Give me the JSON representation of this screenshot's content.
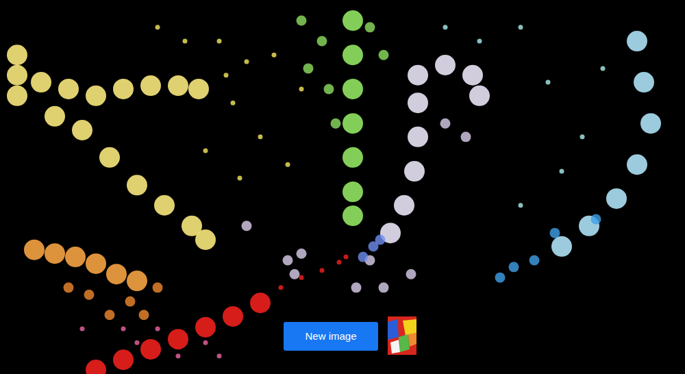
{
  "chart_data": {
    "type": "scatter",
    "tick_labels": false,
    "grid": false,
    "xlim": [
      0,
      100
    ],
    "ylim": [
      0,
      100
    ],
    "series": [
      {
        "color": "#e8dc5a",
        "marker": "dots",
        "x": [
          32,
          36,
          40,
          34,
          38,
          30,
          42,
          35,
          27,
          23,
          44,
          33
        ],
        "y": [
          89.0,
          83.5,
          85.3,
          72.5,
          63.4,
          59.7,
          56.0,
          52.4,
          89.0,
          92.7,
          76.2,
          79.9
        ]
      },
      {
        "color": "#a0e0e0",
        "marker": "dots",
        "x": [
          76,
          80,
          85,
          82,
          88,
          76,
          65,
          70
        ],
        "y": [
          92.7,
          78.0,
          63.4,
          54.2,
          81.7,
          45.1,
          92.7,
          89.0
        ]
      },
      {
        "color": "#e0609a",
        "marker": "dots",
        "x": [
          20,
          26,
          30,
          23,
          32,
          18,
          12
        ],
        "y": [
          8.4,
          4.8,
          8.4,
          12.1,
          4.8,
          12.1,
          12.1
        ]
      },
      {
        "color": "#f2e27a",
        "marker": "tube",
        "x": [
          2.5,
          2.5,
          2.5,
          6,
          10,
          14,
          18,
          22,
          26,
          29,
          8,
          12,
          16,
          20,
          24,
          28,
          30
        ],
        "y": [
          85.3,
          79.9,
          74.4,
          78.0,
          76.2,
          74.4,
          76.2,
          77.1,
          77.1,
          76.2,
          68.9,
          65.2,
          57.9,
          50.5,
          45.1,
          39.6,
          35.9
        ]
      },
      {
        "color": "#f0a040",
        "marker": "tube",
        "x": [
          5,
          8,
          11,
          14,
          17,
          20
        ],
        "y": [
          33.2,
          32.2,
          31.3,
          29.5,
          26.7,
          24.9
        ]
      },
      {
        "color": "#f08a30",
        "marker": "cloud",
        "x": [
          13,
          19,
          23,
          10,
          16,
          21
        ],
        "y": [
          21.2,
          19.4,
          23.1,
          23.1,
          15.8,
          15.8
        ]
      },
      {
        "color": "#8ee060",
        "marker": "cloud",
        "x": [
          44,
          47,
          45,
          48,
          54,
          56,
          49
        ],
        "y": [
          94.5,
          89.0,
          81.7,
          76.2,
          92.7,
          85.3,
          67.0
        ]
      },
      {
        "color": "#8ee060",
        "marker": "tube",
        "x": [
          51.5,
          51.5,
          51.5,
          51.5,
          51.5,
          51.5,
          51.5
        ],
        "y": [
          94.5,
          85.3,
          76.2,
          67.0,
          57.9,
          48.7,
          42.3
        ]
      },
      {
        "color": "#e4def0",
        "marker": "tube",
        "x": [
          61,
          65,
          69,
          70,
          61,
          61,
          60.5,
          59,
          57
        ],
        "y": [
          79.9,
          82.6,
          79.9,
          74.4,
          72.5,
          63.4,
          54.2,
          45.1,
          37.7
        ]
      },
      {
        "color": "#dcd0ec",
        "marker": "cloud",
        "x": [
          54,
          52,
          56,
          43,
          42,
          44,
          36,
          60,
          65,
          68
        ],
        "y": [
          30.4,
          23.1,
          23.1,
          26.7,
          30.4,
          32.2,
          39.6,
          26.7,
          67.0,
          63.4
        ]
      },
      {
        "color": "#a8dcf0",
        "marker": "tube",
        "x": [
          93,
          94,
          95,
          93,
          90,
          86,
          82
        ],
        "y": [
          89.0,
          78.0,
          67.0,
          56.0,
          46.9,
          39.6,
          34.1
        ]
      },
      {
        "color": "#40a0e8",
        "marker": "cloud",
        "x": [
          78,
          75,
          73,
          81,
          87
        ],
        "y": [
          30.4,
          28.6,
          25.8,
          37.7,
          41.4
        ]
      },
      {
        "color": "#6f8ff0",
        "marker": "cloud",
        "x": [
          54.5,
          53,
          55.5
        ],
        "y": [
          34.1,
          31.3,
          35.9
        ]
      },
      {
        "color": "#e8201c",
        "marker": "tube",
        "x": [
          14,
          18,
          22,
          26,
          30,
          34,
          38
        ],
        "y": [
          1.1,
          3.8,
          6.6,
          9.3,
          12.5,
          15.4,
          19.0
        ]
      },
      {
        "color": "#e8201c",
        "marker": "dots",
        "x": [
          41,
          44,
          47,
          49.5,
          50.5
        ],
        "y": [
          23.1,
          25.8,
          27.7,
          29.9,
          31.3
        ]
      }
    ]
  },
  "button": {
    "label": "New image",
    "color": "#1877f2"
  },
  "thumbnail": {
    "colors": [
      "#d8261e",
      "#2a5ed8",
      "#f4d21c",
      "#58b848",
      "#f08a30",
      "#f4f4f4"
    ]
  }
}
